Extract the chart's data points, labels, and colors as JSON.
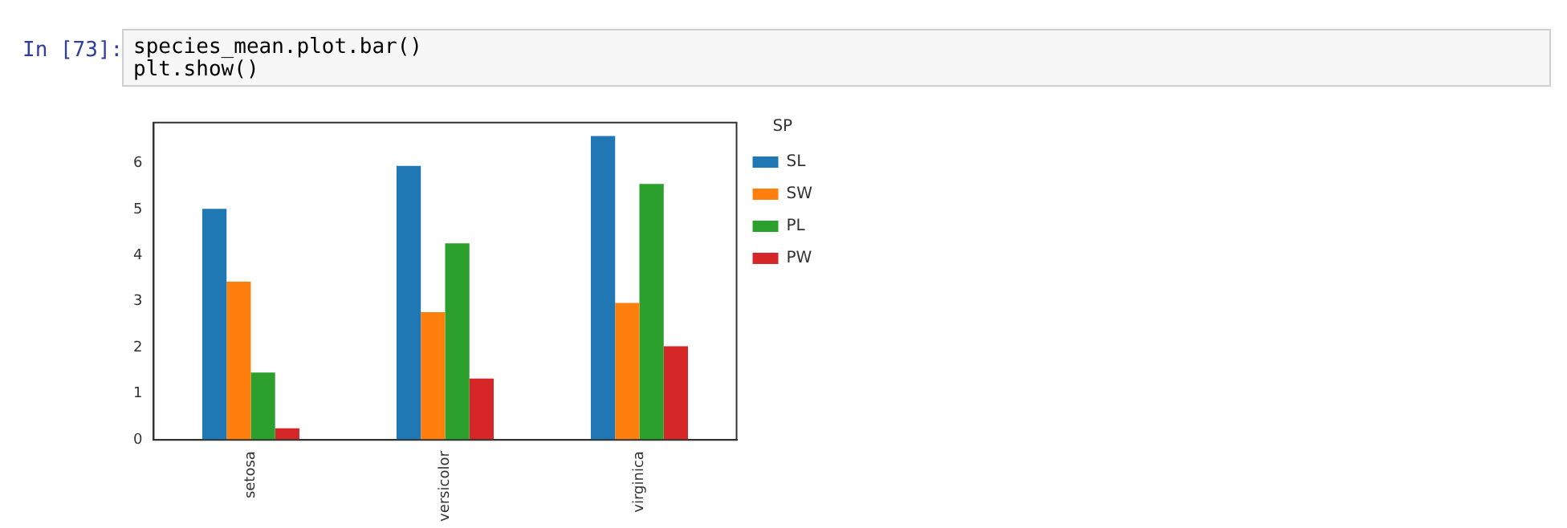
{
  "chart_data": {
    "type": "bar",
    "categories": [
      "setosa",
      "versicolor",
      "virginica"
    ],
    "series": [
      {
        "name": "SL",
        "color": "#1f77b4",
        "values": [
          5.01,
          5.94,
          6.59
        ]
      },
      {
        "name": "SW",
        "color": "#ff7f0e",
        "values": [
          3.43,
          2.77,
          2.97
        ]
      },
      {
        "name": "PL",
        "color": "#2ca02c",
        "values": [
          1.46,
          4.26,
          5.55
        ]
      },
      {
        "name": "PW",
        "color": "#d62728",
        "values": [
          0.25,
          1.33,
          2.03
        ]
      }
    ],
    "ylim": [
      0,
      6.88
    ],
    "yticks": [
      0,
      1,
      2,
      3,
      4,
      5,
      6
    ],
    "grid": false,
    "legend": "right",
    "legend_title": "SP",
    "annotations": [
      "In [73]:",
      "species_mean.plot.bar()\nplt.show()"
    ]
  }
}
